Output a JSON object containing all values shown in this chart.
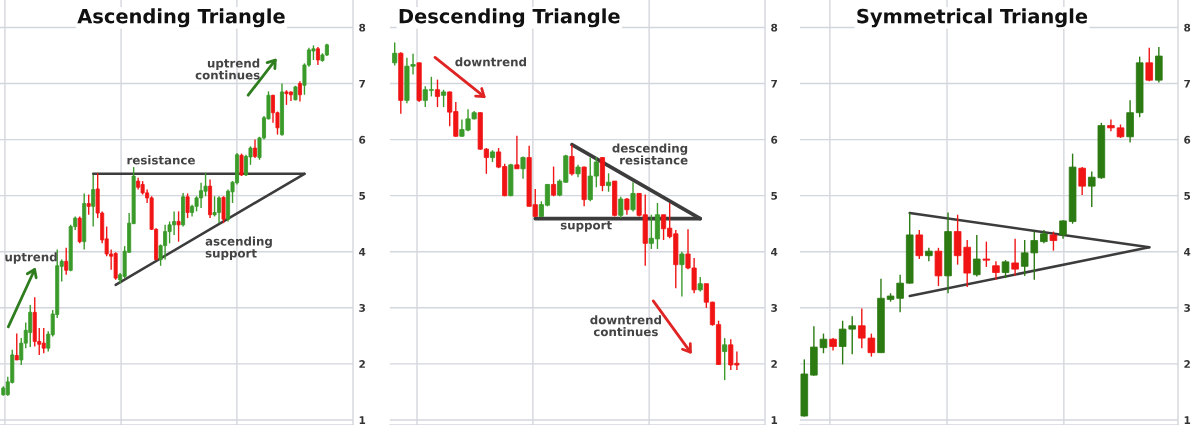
{
  "chart_data": [
    {
      "type": "candlestick",
      "title": "Ascending Triangle",
      "categories": [
        null,
        null,
        null,
        null,
        null,
        null,
        null,
        null,
        null,
        null,
        null,
        null,
        null,
        null,
        null,
        null,
        null,
        null,
        null,
        null,
        null,
        null,
        null,
        null,
        null,
        null,
        null,
        null,
        null,
        null,
        null,
        null,
        null,
        null,
        null,
        null,
        null,
        null,
        null,
        null,
        null,
        null,
        null,
        null,
        null,
        null,
        null,
        null,
        null,
        null,
        null,
        null,
        null,
        null,
        null,
        null,
        null,
        null,
        null,
        null,
        null,
        null,
        null,
        null,
        null,
        null,
        null,
        null,
        null,
        null,
        null,
        null,
        null
      ],
      "ohlc": [
        [
          1.45,
          1.6,
          1.43,
          1.57
        ],
        [
          1.45,
          1.77,
          1.43,
          1.68
        ],
        [
          1.67,
          2.25,
          1.65,
          2.16
        ],
        [
          2.15,
          2.54,
          2.07,
          2.07
        ],
        [
          2.07,
          2.46,
          1.98,
          2.37
        ],
        [
          2.37,
          2.74,
          2.28,
          2.6
        ],
        [
          2.56,
          3.05,
          2.3,
          2.92
        ],
        [
          2.92,
          3.19,
          2.31,
          2.4
        ],
        [
          2.4,
          2.64,
          2.16,
          2.35
        ],
        [
          2.37,
          2.64,
          2.19,
          2.28
        ],
        [
          2.28,
          2.58,
          2.22,
          2.53
        ],
        [
          2.52,
          2.96,
          2.49,
          2.89
        ],
        [
          2.88,
          4.04,
          2.82,
          3.75
        ],
        [
          3.74,
          3.86,
          3.47,
          3.83
        ],
        [
          3.83,
          4.07,
          3.59,
          3.67
        ],
        [
          3.67,
          4.48,
          3.65,
          4.45
        ],
        [
          4.45,
          4.63,
          4.39,
          4.6
        ],
        [
          4.6,
          4.63,
          4.15,
          4.18
        ],
        [
          4.18,
          5.04,
          4.04,
          4.86
        ],
        [
          4.86,
          5.02,
          4.66,
          4.81
        ],
        [
          4.81,
          5.37,
          4.45,
          5.11
        ],
        [
          5.12,
          5.4,
          4.6,
          4.69
        ],
        [
          4.69,
          4.72,
          4.15,
          4.21
        ],
        [
          4.23,
          4.45,
          3.92,
          3.96
        ],
        [
          3.96,
          4.04,
          3.68,
          3.92
        ],
        [
          3.97,
          3.99,
          3.5,
          3.53
        ],
        [
          3.5,
          3.62,
          3.44,
          3.59
        ],
        [
          3.56,
          4.1,
          3.53,
          4.01
        ],
        [
          3.99,
          4.69,
          3.98,
          4.51
        ],
        [
          4.5,
          5.51,
          4.5,
          5.35
        ],
        [
          5.26,
          5.32,
          5.11,
          5.15
        ],
        [
          5.2,
          5.26,
          5.02,
          5.05
        ],
        [
          5.05,
          5.11,
          4.87,
          4.96
        ],
        [
          4.96,
          4.99,
          4.39,
          4.4
        ],
        [
          4.4,
          4.42,
          3.86,
          3.86
        ],
        [
          3.86,
          4.13,
          3.75,
          4.11
        ],
        [
          4.11,
          4.48,
          3.86,
          4.36
        ],
        [
          4.36,
          4.54,
          4.15,
          4.48
        ],
        [
          4.48,
          4.72,
          4.3,
          4.54
        ],
        [
          4.54,
          4.72,
          4.18,
          4.48
        ],
        [
          4.48,
          5.05,
          4.45,
          4.98
        ],
        [
          4.98,
          5.04,
          4.6,
          4.7
        ],
        [
          4.7,
          4.84,
          4.63,
          4.81
        ],
        [
          4.81,
          4.99,
          4.72,
          4.96
        ],
        [
          4.96,
          5.23,
          4.78,
          5.09
        ],
        [
          5.08,
          5.4,
          4.99,
          5.17
        ],
        [
          5.17,
          5.29,
          4.6,
          4.66
        ],
        [
          4.66,
          4.99,
          4.63,
          4.7
        ],
        [
          4.7,
          4.99,
          4.51,
          4.96
        ],
        [
          4.97,
          4.99,
          4.51,
          4.58
        ],
        [
          4.58,
          5.11,
          4.54,
          5.08
        ],
        [
          5.07,
          5.26,
          4.87,
          5.24
        ],
        [
          5.23,
          5.76,
          5.2,
          5.73
        ],
        [
          5.72,
          5.75,
          5.35,
          5.37
        ],
        [
          5.37,
          5.73,
          5.35,
          5.7
        ],
        [
          5.69,
          5.88,
          5.55,
          5.85
        ],
        [
          5.85,
          6.0,
          5.67,
          5.7
        ],
        [
          5.68,
          6.05,
          5.64,
          6.03
        ],
        [
          6.03,
          6.42,
          6.0,
          6.39
        ],
        [
          6.37,
          6.86,
          6.36,
          6.79
        ],
        [
          6.79,
          6.8,
          6.3,
          6.48
        ],
        [
          6.48,
          6.5,
          6.09,
          6.21
        ],
        [
          6.09,
          7.0,
          6.07,
          6.85
        ],
        [
          6.85,
          6.88,
          6.62,
          6.82
        ],
        [
          6.85,
          6.86,
          6.69,
          6.8
        ],
        [
          6.71,
          6.96,
          6.7,
          6.94
        ],
        [
          7.0,
          7.04,
          6.68,
          6.8
        ],
        [
          6.97,
          7.36,
          6.8,
          7.33
        ],
        [
          7.33,
          7.64,
          7.3,
          7.6
        ],
        [
          7.58,
          7.68,
          7.42,
          7.62
        ],
        [
          7.62,
          7.65,
          7.33,
          7.42
        ],
        [
          7.41,
          7.54,
          7.39,
          7.51
        ],
        [
          7.51,
          7.71,
          7.49,
          7.69
        ]
      ],
      "colors": [
        "#3a9a2a",
        "#3a9a2a",
        "#3a9a2a",
        "#f01414",
        "#3a9a2a",
        "#3a9a2a",
        "#3a9a2a",
        "#f01414",
        "#f01414",
        "#f01414",
        "#3a9a2a",
        "#3a9a2a",
        "#3a9a2a",
        "#3a9a2a",
        "#f01414",
        "#3a9a2a",
        "#3a9a2a",
        "#f01414",
        "#3a9a2a",
        "#f01414",
        "#3a9a2a",
        "#f01414",
        "#f01414",
        "#f01414",
        "#f01414",
        "#f01414",
        "#3a9a2a",
        "#3a9a2a",
        "#3a9a2a",
        "#3a9a2a",
        "#f01414",
        "#f01414",
        "#f01414",
        "#f01414",
        "#f01414",
        "#3a9a2a",
        "#3a9a2a",
        "#3a9a2a",
        "#3a9a2a",
        "#f01414",
        "#3a9a2a",
        "#f01414",
        "#3a9a2a",
        "#3a9a2a",
        "#3a9a2a",
        "#3a9a2a",
        "#f01414",
        "#3a9a2a",
        "#3a9a2a",
        "#f01414",
        "#3a9a2a",
        "#3a9a2a",
        "#3a9a2a",
        "#f01414",
        "#3a9a2a",
        "#3a9a2a",
        "#f01414",
        "#3a9a2a",
        "#3a9a2a",
        "#3a9a2a",
        "#f01414",
        "#f01414",
        "#3a9a2a",
        "#f01414",
        "#f01414",
        "#3a9a2a",
        "#f01414",
        "#3a9a2a",
        "#3a9a2a",
        "#3a9a2a",
        "#f01414",
        "#3a9a2a",
        "#3a9a2a"
      ],
      "series": [
        {
          "type": "line",
          "color": "#3c3c3c",
          "values": [
            null,
            null,
            null,
            null,
            null,
            null,
            null,
            null,
            null,
            null,
            null,
            null,
            null,
            null,
            null,
            null,
            null,
            null,
            null,
            null,
            5.39,
            null,
            null,
            null,
            null,
            null,
            null,
            null,
            null,
            null,
            null,
            null,
            null,
            null,
            null,
            null,
            null,
            null,
            null,
            null,
            null,
            null,
            null,
            null,
            null,
            null,
            null,
            null,
            null,
            null,
            null,
            null,
            null,
            null,
            null,
            null,
            null,
            null,
            null,
            null,
            null,
            null,
            null,
            null,
            null,
            null,
            null,
            5.39,
            null,
            null,
            null,
            null,
            null
          ]
        },
        {
          "type": "line",
          "color": "#3c3c3c",
          "values": [
            null,
            null,
            null,
            null,
            null,
            null,
            null,
            null,
            null,
            null,
            null,
            null,
            null,
            null,
            null,
            null,
            null,
            null,
            null,
            null,
            null,
            null,
            null,
            null,
            null,
            3.41,
            null,
            null,
            null,
            null,
            null,
            null,
            null,
            null,
            null,
            null,
            null,
            null,
            null,
            null,
            null,
            null,
            null,
            null,
            null,
            null,
            null,
            null,
            null,
            null,
            null,
            null,
            null,
            null,
            null,
            null,
            null,
            null,
            null,
            null,
            null,
            null,
            null,
            null,
            null,
            null,
            null,
            5.39,
            null,
            null,
            null,
            null,
            null
          ]
        }
      ],
      "annotations": [
        "uptrend",
        "resistance",
        "ascending\nsupport",
        "uptrend\ncontinues"
      ],
      "ylim": [
        0.91,
        8.49
      ],
      "yticks": [
        1,
        2,
        3,
        4,
        5,
        6,
        7,
        8
      ],
      "grid": true,
      "tick_labels": "y"
    },
    {
      "type": "candlestick",
      "title": "Descending Triangle",
      "categories": [
        null,
        null,
        null,
        null,
        null,
        null,
        null,
        null,
        null,
        null,
        null,
        null,
        null,
        null,
        null,
        null,
        null,
        null,
        null,
        null,
        null,
        null,
        null,
        null,
        null,
        null,
        null,
        null,
        null,
        null,
        null,
        null,
        null,
        null,
        null,
        null,
        null,
        null,
        null,
        null,
        null,
        null,
        null,
        null,
        null,
        null,
        null,
        null,
        null,
        null,
        null,
        null,
        null,
        null,
        null,
        null,
        null
      ],
      "ohlc": [
        [
          7.37,
          7.73,
          7.32,
          7.54
        ],
        [
          7.54,
          7.56,
          6.46,
          6.7
        ],
        [
          6.7,
          7.46,
          6.65,
          7.31
        ],
        [
          7.31,
          7.53,
          7.16,
          7.34
        ],
        [
          7.37,
          7.37,
          6.67,
          6.7
        ],
        [
          6.7,
          6.95,
          6.58,
          6.89
        ],
        [
          6.88,
          7.12,
          6.77,
          6.89
        ],
        [
          6.89,
          7.07,
          6.58,
          6.77
        ],
        [
          6.79,
          6.89,
          6.58,
          6.85
        ],
        [
          6.85,
          6.86,
          6.24,
          6.49
        ],
        [
          6.5,
          6.67,
          6.05,
          6.06
        ],
        [
          6.06,
          6.36,
          6.05,
          6.18
        ],
        [
          6.17,
          6.54,
          6.15,
          6.37
        ],
        [
          6.37,
          6.51,
          6.36,
          6.48
        ],
        [
          6.48,
          6.49,
          5.82,
          5.83
        ],
        [
          5.83,
          5.85,
          5.39,
          5.68
        ],
        [
          5.68,
          5.81,
          5.6,
          5.78
        ],
        [
          5.78,
          5.85,
          5.49,
          5.51
        ],
        [
          5.52,
          5.57,
          4.99,
          5.0
        ],
        [
          5.0,
          5.57,
          4.99,
          5.55
        ],
        [
          5.55,
          6.07,
          5.48,
          5.48
        ],
        [
          5.48,
          5.7,
          5.3,
          5.68
        ],
        [
          5.68,
          5.89,
          4.81,
          4.81
        ],
        [
          4.84,
          5.12,
          4.62,
          4.63
        ],
        [
          4.63,
          4.9,
          4.62,
          4.84
        ],
        [
          4.83,
          5.21,
          4.81,
          5.2
        ],
        [
          5.2,
          5.52,
          4.99,
          5.01
        ],
        [
          5.01,
          5.29,
          4.99,
          5.26
        ],
        [
          5.24,
          5.73,
          5.23,
          5.71
        ],
        [
          5.7,
          5.91,
          5.36,
          5.39
        ],
        [
          5.39,
          5.55,
          5.33,
          5.51
        ],
        [
          5.51,
          5.52,
          4.81,
          4.93
        ],
        [
          4.93,
          5.68,
          4.9,
          5.35
        ],
        [
          5.35,
          5.69,
          5.15,
          5.6
        ],
        [
          5.68,
          5.69,
          5.08,
          5.18
        ],
        [
          5.18,
          5.4,
          5.07,
          5.24
        ],
        [
          5.26,
          5.26,
          4.63,
          4.65
        ],
        [
          4.65,
          4.98,
          4.6,
          4.94
        ],
        [
          4.94,
          4.96,
          4.66,
          4.75
        ],
        [
          4.75,
          5.24,
          4.72,
          5.04
        ],
        [
          5.04,
          5.05,
          4.63,
          4.65
        ],
        [
          4.66,
          5.02,
          3.75,
          4.15
        ],
        [
          4.15,
          4.66,
          4.05,
          4.24
        ],
        [
          4.23,
          4.87,
          4.05,
          4.66
        ],
        [
          4.66,
          4.66,
          4.21,
          4.41
        ],
        [
          4.42,
          4.87,
          4.24,
          4.27
        ],
        [
          4.32,
          4.39,
          3.35,
          3.77
        ],
        [
          3.77,
          4.0,
          3.2,
          3.96
        ],
        [
          3.96,
          4.4,
          3.69,
          3.71
        ],
        [
          3.71,
          3.89,
          3.26,
          3.32
        ],
        [
          3.32,
          3.55,
          3.29,
          3.43
        ],
        [
          3.43,
          3.43,
          3.0,
          3.1
        ],
        [
          3.1,
          3.11,
          2.68,
          2.7
        ],
        [
          2.7,
          2.77,
          1.98,
          1.99
        ],
        [
          2.22,
          2.46,
          1.71,
          2.34
        ],
        [
          2.34,
          2.44,
          1.89,
          1.98
        ],
        [
          2.01,
          2.22,
          1.89,
          1.98
        ]
      ],
      "colors": [
        "#3a9a2a",
        "#f01414",
        "#3a9a2a",
        "#3a9a2a",
        "#f01414",
        "#3a9a2a",
        "#3a9a2a",
        "#f01414",
        "#3a9a2a",
        "#f01414",
        "#f01414",
        "#3a9a2a",
        "#3a9a2a",
        "#3a9a2a",
        "#f01414",
        "#f01414",
        "#3a9a2a",
        "#f01414",
        "#f01414",
        "#3a9a2a",
        "#f01414",
        "#3a9a2a",
        "#f01414",
        "#f01414",
        "#3a9a2a",
        "#3a9a2a",
        "#f01414",
        "#3a9a2a",
        "#3a9a2a",
        "#f01414",
        "#3a9a2a",
        "#f01414",
        "#3a9a2a",
        "#3a9a2a",
        "#f01414",
        "#3a9a2a",
        "#f01414",
        "#3a9a2a",
        "#f01414",
        "#3a9a2a",
        "#f01414",
        "#f01414",
        "#3a9a2a",
        "#3a9a2a",
        "#f01414",
        "#f01414",
        "#f01414",
        "#3a9a2a",
        "#f01414",
        "#f01414",
        "#3a9a2a",
        "#f01414",
        "#f01414",
        "#f01414",
        "#3a9a2a",
        "#f01414",
        "#f01414"
      ],
      "series": [
        {
          "type": "line",
          "color": "#3c3c3c",
          "values": [
            null,
            null,
            null,
            null,
            null,
            null,
            null,
            null,
            null,
            null,
            null,
            null,
            null,
            null,
            null,
            null,
            null,
            null,
            null,
            null,
            null,
            null,
            null,
            null,
            null,
            null,
            null,
            null,
            null,
            5.91,
            null,
            null,
            null,
            null,
            null,
            null,
            null,
            null,
            null,
            null,
            null,
            null,
            null,
            null,
            null,
            null,
            null,
            null,
            null,
            null,
            4.59,
            null,
            null,
            null,
            null,
            null,
            null
          ]
        },
        {
          "type": "line",
          "color": "#3c3c3c",
          "values": [
            null,
            null,
            null,
            null,
            null,
            null,
            null,
            null,
            null,
            null,
            null,
            null,
            null,
            null,
            null,
            null,
            null,
            null,
            null,
            null,
            null,
            null,
            null,
            4.59,
            null,
            null,
            null,
            null,
            null,
            null,
            null,
            null,
            null,
            null,
            null,
            null,
            null,
            null,
            null,
            null,
            null,
            null,
            null,
            null,
            null,
            null,
            null,
            null,
            null,
            null,
            4.59,
            null,
            null,
            null,
            null,
            null,
            null
          ]
        }
      ],
      "annotations": [
        "downtrend",
        "descending\nresistance",
        "support",
        "downtrend\ncontinues"
      ],
      "ylim": [
        0.91,
        8.49
      ],
      "yticks": [
        1,
        2,
        3,
        4,
        5,
        6,
        7,
        8
      ],
      "grid": true,
      "tick_labels": "y"
    },
    {
      "type": "candlestick",
      "title": "Symmetrical Triangle",
      "categories": [
        null,
        null,
        null,
        null,
        null,
        null,
        null,
        null,
        null,
        null,
        null,
        null,
        null,
        null,
        null,
        null,
        null,
        null,
        null,
        null,
        null,
        null,
        null,
        null,
        null,
        null,
        null,
        null,
        null,
        null,
        null,
        null,
        null,
        null,
        null,
        null,
        null,
        null
      ],
      "ohlc": [
        [
          1.07,
          2.08,
          1.06,
          1.82
        ],
        [
          1.8,
          2.67,
          1.79,
          2.3
        ],
        [
          2.29,
          2.54,
          2.19,
          2.44
        ],
        [
          2.44,
          2.46,
          2.24,
          2.31
        ],
        [
          2.31,
          2.77,
          1.99,
          2.62
        ],
        [
          2.62,
          2.85,
          2.17,
          2.68
        ],
        [
          2.68,
          2.99,
          2.28,
          2.46
        ],
        [
          2.46,
          2.54,
          2.13,
          2.2
        ],
        [
          2.2,
          3.52,
          2.2,
          3.17
        ],
        [
          3.15,
          3.26,
          3.11,
          3.21
        ],
        [
          3.17,
          3.59,
          2.92,
          3.44
        ],
        [
          3.44,
          4.69,
          3.43,
          4.3
        ],
        [
          4.3,
          4.39,
          3.87,
          3.93
        ],
        [
          3.93,
          4.07,
          3.83,
          4.01
        ],
        [
          4.01,
          4.07,
          3.39,
          3.57
        ],
        [
          3.57,
          4.7,
          3.26,
          4.36
        ],
        [
          4.36,
          4.66,
          3.77,
          3.93
        ],
        [
          4.08,
          4.21,
          3.37,
          3.62
        ],
        [
          3.59,
          4.3,
          3.56,
          3.87
        ],
        [
          3.87,
          4.18,
          3.73,
          3.85
        ],
        [
          3.75,
          3.83,
          3.5,
          3.63
        ],
        [
          3.63,
          3.85,
          3.53,
          3.82
        ],
        [
          3.8,
          4.23,
          3.57,
          3.69
        ],
        [
          3.74,
          4.21,
          3.57,
          3.98
        ],
        [
          3.98,
          4.36,
          3.5,
          4.2
        ],
        [
          4.18,
          4.39,
          4.15,
          4.32
        ],
        [
          4.3,
          4.36,
          4.02,
          4.2
        ],
        [
          4.3,
          4.56,
          4.23,
          4.55
        ],
        [
          4.54,
          5.75,
          4.5,
          5.51
        ],
        [
          5.49,
          5.51,
          5.01,
          5.17
        ],
        [
          5.17,
          5.43,
          4.8,
          5.33
        ],
        [
          5.32,
          6.3,
          5.3,
          6.25
        ],
        [
          6.25,
          6.36,
          6.15,
          6.21
        ],
        [
          6.21,
          6.27,
          6.03,
          6.05
        ],
        [
          6.05,
          6.7,
          5.95,
          6.48
        ],
        [
          6.48,
          7.48,
          6.4,
          7.37
        ],
        [
          7.37,
          7.64,
          7.04,
          7.06
        ],
        [
          7.06,
          7.65,
          7.02,
          7.49
        ]
      ],
      "colors": [
        "#2b7a12",
        "#2b7a12",
        "#2b7a12",
        "#f01414",
        "#2b7a12",
        "#2b7a12",
        "#f01414",
        "#f01414",
        "#2b7a12",
        "#2b7a12",
        "#2b7a12",
        "#2b7a12",
        "#f01414",
        "#2b7a12",
        "#f01414",
        "#2b7a12",
        "#f01414",
        "#f01414",
        "#2b7a12",
        "#f01414",
        "#f01414",
        "#2b7a12",
        "#f01414",
        "#2b7a12",
        "#2b7a12",
        "#2b7a12",
        "#f01414",
        "#2b7a12",
        "#2b7a12",
        "#f01414",
        "#2b7a12",
        "#2b7a12",
        "#f01414",
        "#f01414",
        "#2b7a12",
        "#2b7a12",
        "#f01414",
        "#2b7a12"
      ],
      "series": [
        {
          "type": "line",
          "color": "#3c3c3c",
          "values": [
            null,
            null,
            null,
            null,
            null,
            null,
            null,
            null,
            null,
            null,
            null,
            4.69,
            null,
            null,
            null,
            null,
            null,
            null,
            null,
            null,
            null,
            null,
            null,
            null,
            null,
            null,
            null,
            null,
            null,
            null,
            null,
            null,
            null,
            null,
            null,
            null,
            4.08,
            null
          ]
        },
        {
          "type": "line",
          "color": "#3c3c3c",
          "values": [
            null,
            null,
            null,
            null,
            null,
            null,
            null,
            null,
            null,
            null,
            null,
            3.21,
            null,
            null,
            null,
            null,
            null,
            null,
            null,
            null,
            null,
            null,
            null,
            null,
            null,
            null,
            null,
            null,
            null,
            null,
            null,
            null,
            null,
            null,
            null,
            null,
            4.08,
            null
          ]
        }
      ],
      "ylim": [
        0.91,
        8.49
      ],
      "yticks": [
        1,
        2,
        3,
        4,
        5,
        6,
        7,
        8
      ],
      "grid": true,
      "tick_labels": "y"
    }
  ]
}
